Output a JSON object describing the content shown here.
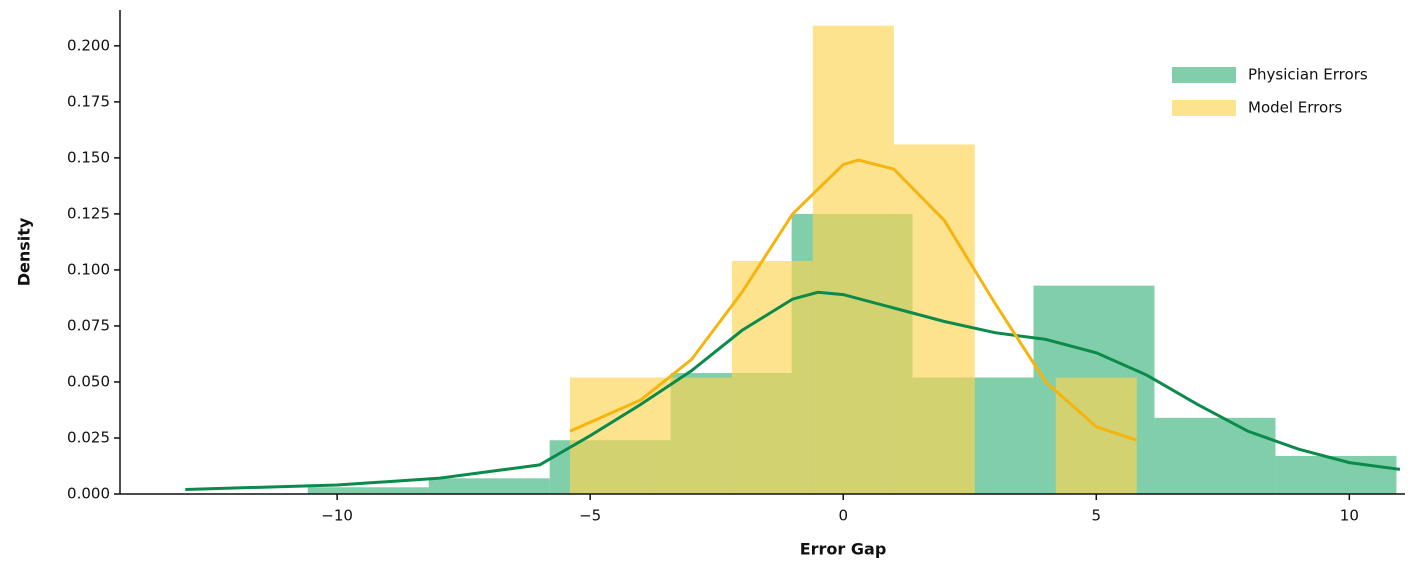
{
  "chart_data": {
    "type": "histogram",
    "x_label": "Error Gap",
    "y_label": "Density",
    "xlim": [
      -14.29,
      11.1
    ],
    "ylim": [
      0,
      0.216
    ],
    "xticks": [
      {
        "value": -10,
        "label": "−10"
      },
      {
        "value": -5,
        "label": "−5"
      },
      0,
      5,
      10
    ],
    "yticks": [
      {
        "value": 0,
        "label": "0.000"
      },
      {
        "value": 0.025,
        "label": "0.025"
      },
      {
        "value": 0.05,
        "label": "0.050"
      },
      {
        "value": 0.075,
        "label": "0.075"
      },
      {
        "value": 0.1,
        "label": "0.100"
      },
      {
        "value": 0.125,
        "label": "0.125"
      },
      {
        "value": 0.15,
        "label": "0.150"
      },
      {
        "value": 0.175,
        "label": "0.175"
      },
      {
        "value": 0.2,
        "label": "0.200"
      }
    ],
    "grid": false,
    "legend_position": "upper right",
    "series": [
      {
        "name": "Physician Errors",
        "color": "#3db67c",
        "line_color": "#0b8a4b",
        "bins": [
          -10.58,
          -8.19,
          -5.8,
          -3.41,
          -1.02,
          1.37,
          3.76,
          6.15,
          8.54,
          10.93
        ],
        "values": [
          0.003,
          0.007,
          0.024,
          0.054,
          0.125,
          0.052,
          0.093,
          0.034,
          0.017
        ],
        "kde_x": [
          -13,
          -10,
          -8,
          -6,
          -5,
          -4,
          -3,
          -2,
          -1,
          -0.5,
          0,
          1,
          2,
          3,
          4,
          5,
          6,
          7,
          8,
          9,
          10,
          11
        ],
        "kde_values": [
          0.002,
          0.004,
          0.007,
          0.013,
          0.026,
          0.04,
          0.055,
          0.073,
          0.087,
          0.09,
          0.089,
          0.083,
          0.077,
          0.072,
          0.069,
          0.063,
          0.053,
          0.04,
          0.028,
          0.02,
          0.014,
          0.011
        ]
      },
      {
        "name": "Model Errors",
        "color": "#fed452",
        "line_color": "#f5b40f",
        "bins": [
          -5.4,
          -3.8,
          -2.2,
          -0.6,
          1.0,
          2.6,
          4.2,
          5.8
        ],
        "values": [
          0.052,
          0.052,
          0.104,
          0.209,
          0.156,
          0,
          0.052
        ],
        "kde_x": [
          -5.4,
          -4,
          -3,
          -2,
          -1,
          0,
          0.3,
          1,
          2,
          3,
          4,
          5,
          5.8
        ],
        "kde_values": [
          0.028,
          0.042,
          0.06,
          0.09,
          0.125,
          0.147,
          0.149,
          0.145,
          0.122,
          0.085,
          0.05,
          0.03,
          0.024
        ]
      }
    ]
  }
}
